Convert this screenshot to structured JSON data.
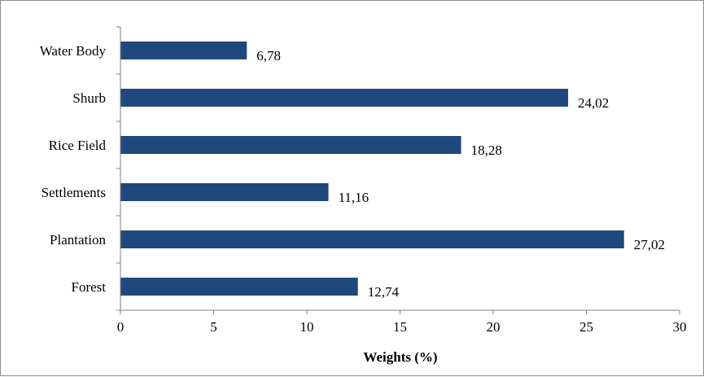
{
  "chart_data": {
    "type": "bar",
    "orientation": "horizontal",
    "categories": [
      "Water Body",
      "Shurb",
      "Rice Field",
      "Settlements",
      "Plantation",
      "Forest"
    ],
    "values": [
      6.78,
      24.02,
      18.28,
      11.16,
      27.02,
      12.74
    ],
    "data_labels": [
      "6,78",
      "24,02",
      "18,28",
      "11,16",
      "27,02",
      "12,74"
    ],
    "xlabel": "Weights (%)",
    "ylabel": "",
    "xlim": [
      0,
      30
    ],
    "xticks": [
      0,
      5,
      10,
      15,
      20,
      25,
      30
    ],
    "xtick_labels": [
      "0",
      "5",
      "10",
      "15",
      "20",
      "25",
      "30"
    ],
    "grid": false,
    "legend": "none",
    "bar_color": "#1f497d"
  }
}
